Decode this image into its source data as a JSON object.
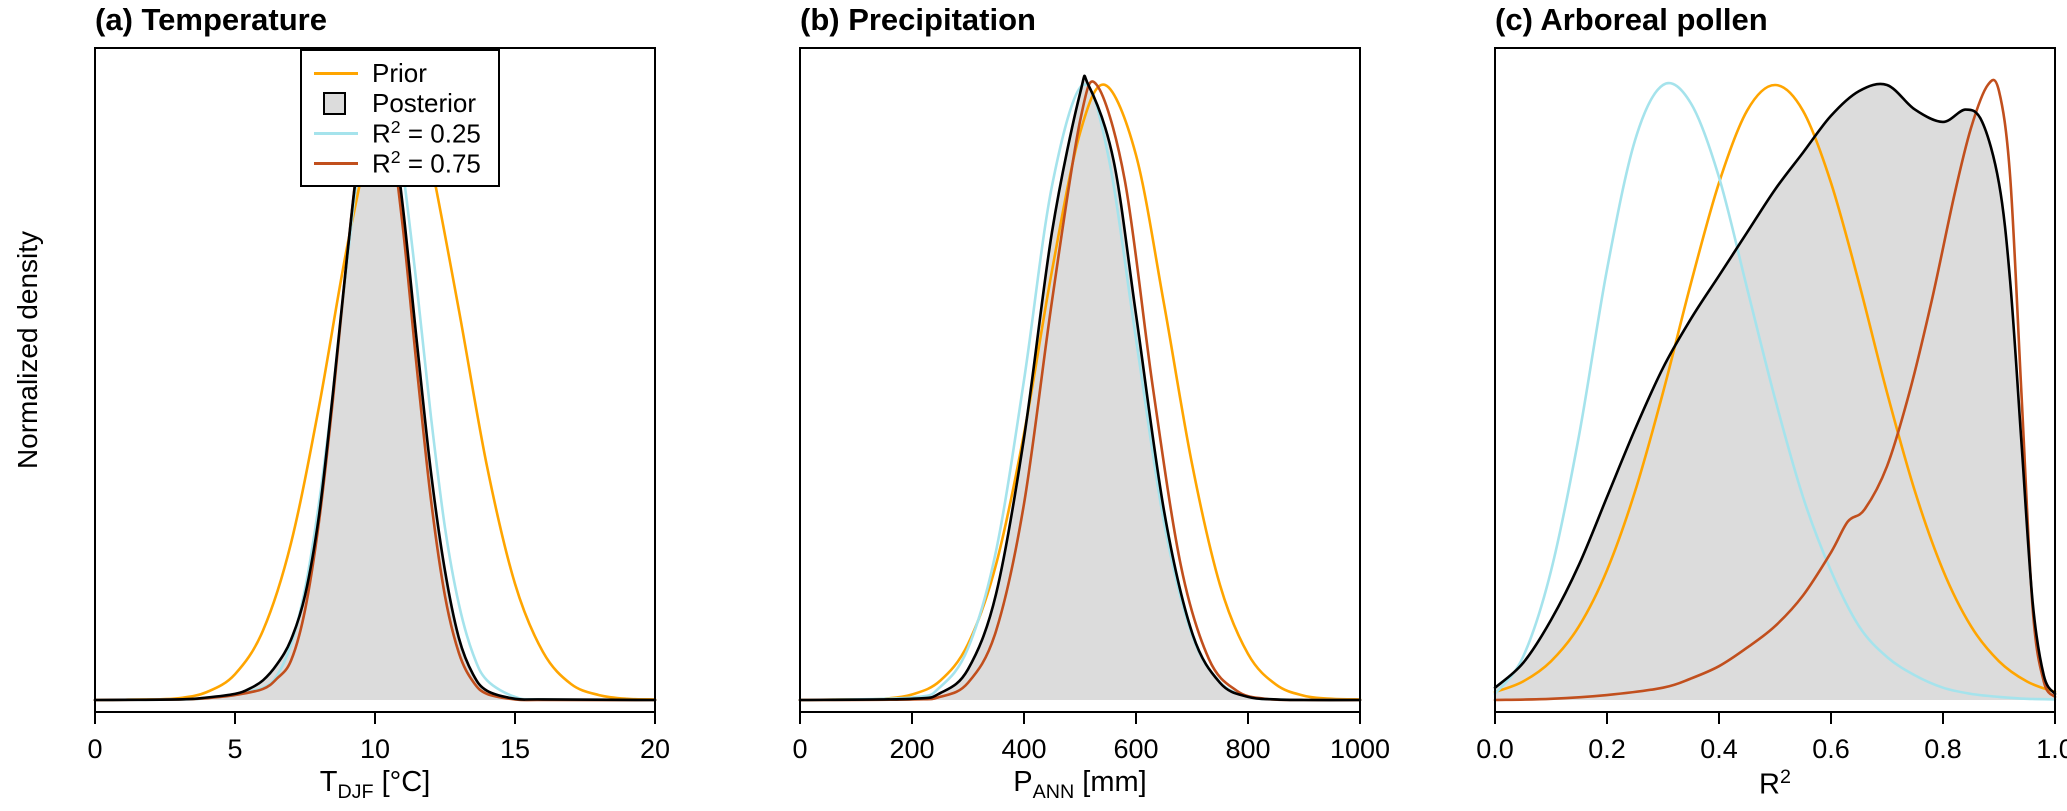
{
  "figure": {
    "ylabel": "Normalized density",
    "background": "#FFFFFF",
    "axis_color": "#000000",
    "posterior_fill": "#DCDCDC"
  },
  "legend": {
    "position": "top-left of panel (a)",
    "items": [
      {
        "key": "prior",
        "swatch": "line",
        "color": "#FFA500",
        "label": {
          "pre": "Prior"
        }
      },
      {
        "key": "posterior",
        "swatch": "box",
        "color": "#000000",
        "fill": "#DCDCDC",
        "label": {
          "pre": "Posterior"
        }
      },
      {
        "key": "r2-025",
        "swatch": "line",
        "color": "#A5E3EC",
        "label": {
          "pre": "R",
          "sup": "2",
          "post": " = 0.25"
        }
      },
      {
        "key": "r2-075",
        "swatch": "line",
        "color": "#C14F1D",
        "label": {
          "pre": "R",
          "sup": "2",
          "post": " = 0.75"
        }
      }
    ]
  },
  "chart_data": [
    {
      "id": "temperature",
      "type": "area",
      "title": "(a) Temperature",
      "xlabel": {
        "pre": "T",
        "sub": "DJF",
        "post": " [°C]"
      },
      "ylabel": "Normalized density",
      "xlim": [
        0,
        20
      ],
      "ylim": [
        0,
        1.08
      ],
      "xticks": [
        "0",
        "5",
        "10",
        "15",
        "20"
      ],
      "xtick_values": [
        0,
        5,
        10,
        15,
        20
      ],
      "grid": false,
      "series": [
        {
          "name": "Posterior",
          "role": "area",
          "color": "#000000",
          "fill": "#DCDCDC",
          "x": [
            0,
            3,
            4,
            5,
            5.5,
            6,
            6.5,
            7,
            7.5,
            8,
            8.5,
            9,
            9.5,
            10.1,
            10.6,
            11,
            11.5,
            12,
            12.5,
            13,
            13.5,
            14,
            15,
            16,
            20
          ],
          "y": [
            0,
            0.001,
            0.004,
            0.01,
            0.018,
            0.032,
            0.058,
            0.098,
            0.17,
            0.3,
            0.5,
            0.72,
            0.91,
            1.0,
            0.93,
            0.8,
            0.58,
            0.37,
            0.21,
            0.1,
            0.042,
            0.015,
            0.002,
            0.001,
            0
          ]
        },
        {
          "name": "Prior",
          "role": "line",
          "color": "#FFA500",
          "x": [
            0,
            2,
            3,
            4,
            5,
            6,
            7,
            8,
            9,
            10,
            10.8,
            11.5,
            12,
            13,
            14,
            15,
            16,
            17,
            18,
            19,
            20
          ],
          "y": [
            0,
            0.001,
            0.003,
            0.013,
            0.042,
            0.113,
            0.255,
            0.477,
            0.736,
            0.941,
            1.0,
            0.955,
            0.873,
            0.633,
            0.38,
            0.189,
            0.078,
            0.026,
            0.008,
            0.002,
            0.001
          ]
        },
        {
          "name": "R2 = 0.25",
          "role": "line",
          "color": "#A5E3EC",
          "x": [
            0,
            3,
            4,
            5,
            6,
            6.5,
            7,
            7.5,
            8,
            8.5,
            9,
            9.5,
            10.2,
            10.7,
            11,
            11.5,
            12,
            12.5,
            13,
            13.5,
            14,
            15,
            16,
            20
          ],
          "y": [
            0,
            0.001,
            0.003,
            0.01,
            0.02,
            0.04,
            0.09,
            0.18,
            0.32,
            0.5,
            0.71,
            0.89,
            1.0,
            0.94,
            0.86,
            0.67,
            0.46,
            0.28,
            0.155,
            0.075,
            0.032,
            0.005,
            0.001,
            0
          ]
        },
        {
          "name": "R2 = 0.75",
          "role": "line",
          "color": "#C14F1D",
          "x": [
            0,
            3,
            4,
            5,
            6,
            6.5,
            7,
            7.5,
            8,
            8.5,
            9,
            9.5,
            10.05,
            10.5,
            11,
            11.5,
            12,
            12.5,
            13,
            13.5,
            14,
            15,
            16,
            20
          ],
          "y": [
            0,
            0.001,
            0.003,
            0.008,
            0.018,
            0.035,
            0.064,
            0.146,
            0.29,
            0.49,
            0.72,
            0.914,
            1.0,
            0.942,
            0.766,
            0.537,
            0.325,
            0.169,
            0.076,
            0.03,
            0.01,
            0.001,
            0,
            0
          ]
        }
      ]
    },
    {
      "id": "precipitation",
      "type": "area",
      "title": "(b) Precipitation",
      "xlabel": {
        "pre": "P",
        "sub": "ANN",
        "post": " [mm]"
      },
      "ylabel": "Normalized density",
      "xlim": [
        0,
        1000
      ],
      "ylim": [
        0,
        1.08
      ],
      "xticks": [
        "0",
        "200",
        "400",
        "600",
        "800",
        "1000"
      ],
      "xtick_values": [
        0,
        200,
        400,
        600,
        800,
        1000
      ],
      "grid": false,
      "series": [
        {
          "name": "Posterior",
          "role": "area",
          "color": "#000000",
          "fill": "#DCDCDC",
          "x": [
            0,
            200,
            250,
            300,
            350,
            400,
            450,
            500,
            515,
            560,
            600,
            650,
            700,
            750,
            800,
            850,
            900,
            1000
          ],
          "y": [
            0,
            0.002,
            0.011,
            0.05,
            0.172,
            0.426,
            0.761,
            0.986,
            1.0,
            0.877,
            0.627,
            0.308,
            0.11,
            0.028,
            0.005,
            0.001,
            0,
            0
          ]
        },
        {
          "name": "Prior",
          "role": "line",
          "color": "#FFA500",
          "x": [
            0,
            100,
            150,
            200,
            250,
            300,
            350,
            400,
            450,
            500,
            545,
            600,
            650,
            700,
            750,
            800,
            850,
            900,
            950,
            1000
          ],
          "y": [
            0,
            0.001,
            0.002,
            0.009,
            0.031,
            0.091,
            0.22,
            0.433,
            0.698,
            0.922,
            1.0,
            0.886,
            0.644,
            0.384,
            0.187,
            0.075,
            0.025,
            0.007,
            0.002,
            0.001
          ]
        },
        {
          "name": "R2 = 0.25",
          "role": "line",
          "color": "#A5E3EC",
          "x": [
            0,
            200,
            250,
            300,
            350,
            400,
            450,
            505,
            550,
            600,
            650,
            700,
            750,
            800,
            850,
            1000
          ],
          "y": [
            0,
            0.004,
            0.021,
            0.084,
            0.242,
            0.52,
            0.836,
            1.0,
            0.887,
            0.587,
            0.289,
            0.106,
            0.029,
            0.006,
            0.001,
            0
          ]
        },
        {
          "name": "R2 = 0.75",
          "role": "line",
          "color": "#C14F1D",
          "x": [
            0,
            200,
            250,
            300,
            350,
            400,
            450,
            500,
            530,
            580,
            630,
            680,
            730,
            780,
            830,
            900,
            1000
          ],
          "y": [
            0,
            0.001,
            0.005,
            0.028,
            0.112,
            0.319,
            0.649,
            0.941,
            1.0,
            0.845,
            0.509,
            0.219,
            0.067,
            0.015,
            0.002,
            0,
            0
          ]
        }
      ]
    },
    {
      "id": "arboreal-pollen",
      "type": "area",
      "title": "(c) Arboreal pollen",
      "xlabel": {
        "pre": "R",
        "sup": "2"
      },
      "ylabel": "Normalized density",
      "xlim": [
        0,
        1
      ],
      "ylim": [
        0,
        1.08
      ],
      "xticks": [
        "0.0",
        "0.2",
        "0.4",
        "0.6",
        "0.8",
        "1.0"
      ],
      "xtick_values": [
        0,
        0.2,
        0.4,
        0.6,
        0.8,
        1.0
      ],
      "grid": false,
      "series": [
        {
          "name": "Posterior",
          "role": "area",
          "color": "#000000",
          "fill": "#DCDCDC",
          "x": [
            0,
            0.05,
            0.1,
            0.15,
            0.2,
            0.25,
            0.3,
            0.35,
            0.4,
            0.45,
            0.5,
            0.55,
            0.6,
            0.65,
            0.7,
            0.75,
            0.8,
            0.84,
            0.87,
            0.9,
            0.92,
            0.94,
            0.96,
            0.98,
            1.0
          ],
          "y": [
            0.02,
            0.06,
            0.13,
            0.22,
            0.33,
            0.44,
            0.54,
            0.62,
            0.69,
            0.76,
            0.83,
            0.89,
            0.95,
            0.99,
            1.0,
            0.96,
            0.94,
            0.96,
            0.94,
            0.84,
            0.68,
            0.42,
            0.16,
            0.04,
            0.01
          ]
        },
        {
          "name": "Prior",
          "role": "line",
          "color": "#FFA500",
          "x": [
            0,
            0.05,
            0.1,
            0.15,
            0.2,
            0.25,
            0.3,
            0.35,
            0.4,
            0.45,
            0.5,
            0.55,
            0.6,
            0.65,
            0.7,
            0.75,
            0.8,
            0.85,
            0.9,
            0.95,
            1.0
          ],
          "y": [
            0.013,
            0.03,
            0.063,
            0.12,
            0.211,
            0.339,
            0.5,
            0.678,
            0.841,
            0.958,
            1.0,
            0.958,
            0.841,
            0.678,
            0.5,
            0.339,
            0.211,
            0.12,
            0.063,
            0.03,
            0.013
          ]
        },
        {
          "name": "R2 = 0.25",
          "role": "line",
          "color": "#A5E3EC",
          "x": [
            0,
            0.05,
            0.1,
            0.15,
            0.2,
            0.25,
            0.3,
            0.35,
            0.4,
            0.45,
            0.5,
            0.55,
            0.6,
            0.65,
            0.7,
            0.75,
            0.8,
            0.85,
            0.9,
            0.95,
            1.0
          ],
          "y": [
            0.01,
            0.07,
            0.21,
            0.43,
            0.7,
            0.91,
            1.0,
            0.97,
            0.85,
            0.67,
            0.49,
            0.33,
            0.21,
            0.12,
            0.07,
            0.04,
            0.02,
            0.01,
            0.005,
            0.002,
            0.001
          ]
        },
        {
          "name": "R2 = 0.75",
          "role": "line",
          "color": "#C14F1D",
          "x": [
            0,
            0.1,
            0.2,
            0.3,
            0.35,
            0.4,
            0.45,
            0.5,
            0.55,
            0.6,
            0.63,
            0.66,
            0.7,
            0.74,
            0.78,
            0.82,
            0.85,
            0.88,
            0.9,
            0.92,
            0.94,
            0.96,
            0.98,
            1.0
          ],
          "y": [
            0,
            0.002,
            0.008,
            0.02,
            0.035,
            0.055,
            0.085,
            0.12,
            0.17,
            0.24,
            0.29,
            0.31,
            0.38,
            0.5,
            0.65,
            0.82,
            0.93,
            1.0,
            0.99,
            0.85,
            0.5,
            0.15,
            0.03,
            0.005
          ]
        }
      ]
    }
  ]
}
